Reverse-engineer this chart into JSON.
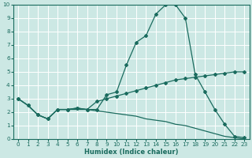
{
  "xlabel": "Humidex (Indice chaleur)",
  "bg_color": "#cce8e4",
  "line_color": "#1a6b5e",
  "grid_color": "#ffffff",
  "xlim": [
    -0.5,
    23.5
  ],
  "ylim": [
    0,
    10
  ],
  "xticks": [
    0,
    1,
    2,
    3,
    4,
    5,
    6,
    7,
    8,
    9,
    10,
    11,
    12,
    13,
    14,
    15,
    16,
    17,
    18,
    19,
    20,
    21,
    22,
    23
  ],
  "yticks": [
    0,
    1,
    2,
    3,
    4,
    5,
    6,
    7,
    8,
    9,
    10
  ],
  "line1_x": [
    0,
    1,
    2,
    3,
    4,
    5,
    6,
    7,
    8,
    9,
    10,
    11,
    12,
    13,
    14,
    15,
    16,
    17,
    18,
    19,
    20,
    21,
    22,
    23
  ],
  "line1_y": [
    3.0,
    2.5,
    1.8,
    1.5,
    2.2,
    2.2,
    2.3,
    2.2,
    2.8,
    3.0,
    3.2,
    3.4,
    3.6,
    3.8,
    4.0,
    4.2,
    4.4,
    4.5,
    4.6,
    4.7,
    4.8,
    4.9,
    5.0,
    5.0
  ],
  "line2_x": [
    0,
    1,
    2,
    3,
    4,
    5,
    6,
    7,
    8,
    9,
    10,
    11,
    12,
    13,
    14,
    15,
    16,
    17,
    18,
    19,
    20,
    21,
    22,
    23
  ],
  "line2_y": [
    3.0,
    2.5,
    1.8,
    1.5,
    2.2,
    2.2,
    2.3,
    2.2,
    2.2,
    3.3,
    3.5,
    5.5,
    7.2,
    7.7,
    9.3,
    10.0,
    10.0,
    9.0,
    4.8,
    3.5,
    2.2,
    1.1,
    0.2,
    0.1
  ],
  "line3_x": [
    0,
    1,
    2,
    3,
    4,
    5,
    6,
    7,
    8,
    9,
    10,
    11,
    12,
    13,
    14,
    15,
    16,
    17,
    18,
    19,
    20,
    21,
    22,
    23
  ],
  "line3_y": [
    3.0,
    2.5,
    1.8,
    1.5,
    2.2,
    2.2,
    2.2,
    2.2,
    2.1,
    2.0,
    1.9,
    1.8,
    1.7,
    1.5,
    1.4,
    1.3,
    1.1,
    1.0,
    0.8,
    0.6,
    0.4,
    0.2,
    0.1,
    0.0
  ],
  "marker": "D",
  "markersize": 2.0,
  "linewidth": 0.9,
  "xlabel_fontsize": 6.0,
  "tick_fontsize": 5.2
}
